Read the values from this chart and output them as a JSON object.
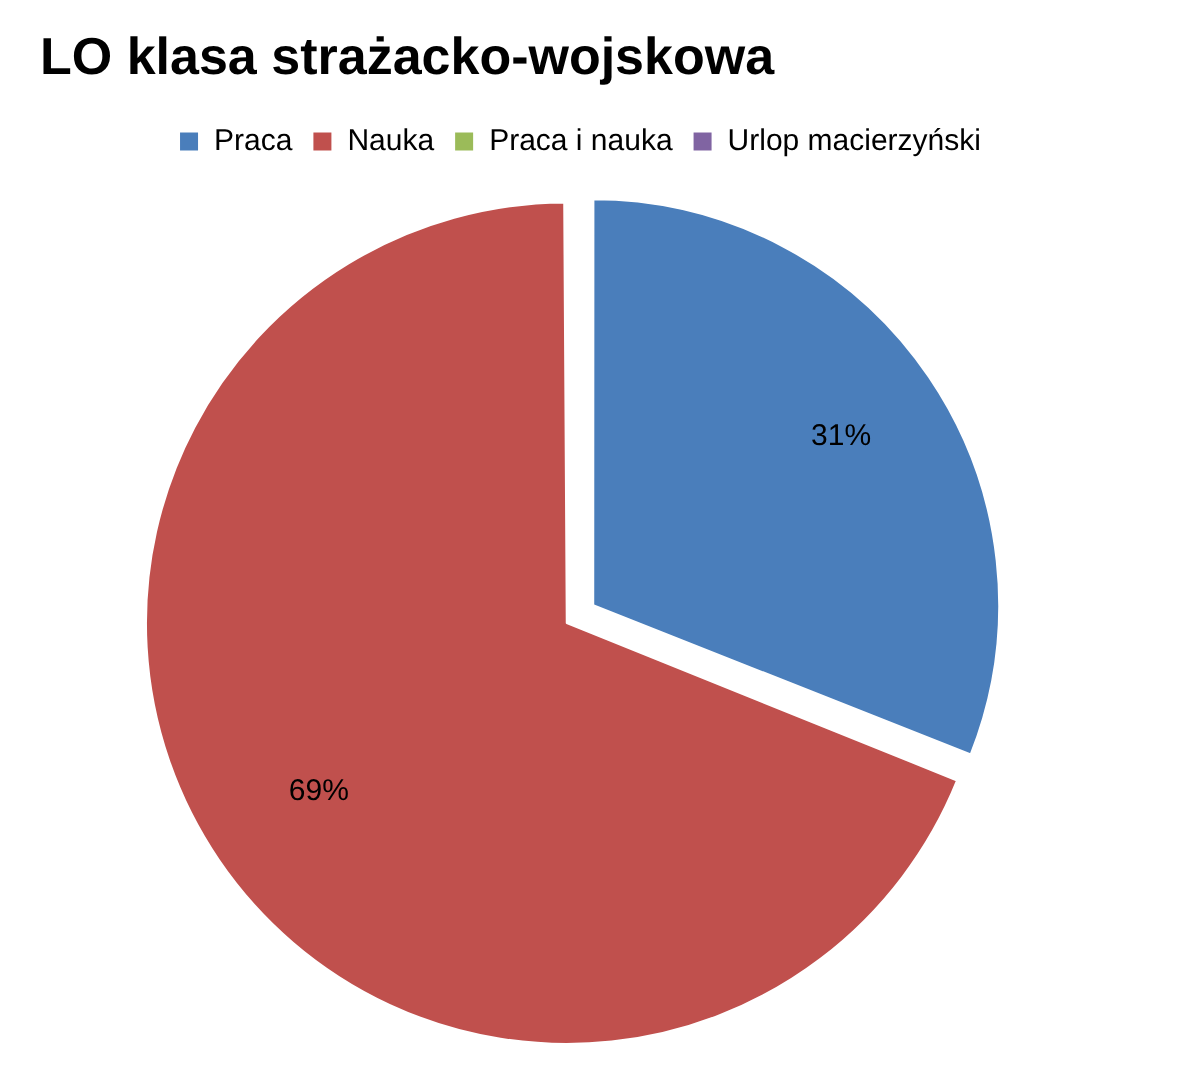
{
  "chart_data": {
    "type": "pie",
    "title": "LO klasa strażacko-wojskowa",
    "categories": [
      "Praca",
      "Nauka",
      "Praca i nauka",
      "Urlop macierzyński"
    ],
    "values": [
      31,
      69,
      0,
      0
    ],
    "colors": [
      "#4a7ebb",
      "#c0504d",
      "#9bbb59",
      "#8064a2"
    ],
    "value_labels": [
      "31%",
      "69%",
      null,
      null
    ],
    "legend": "top"
  }
}
